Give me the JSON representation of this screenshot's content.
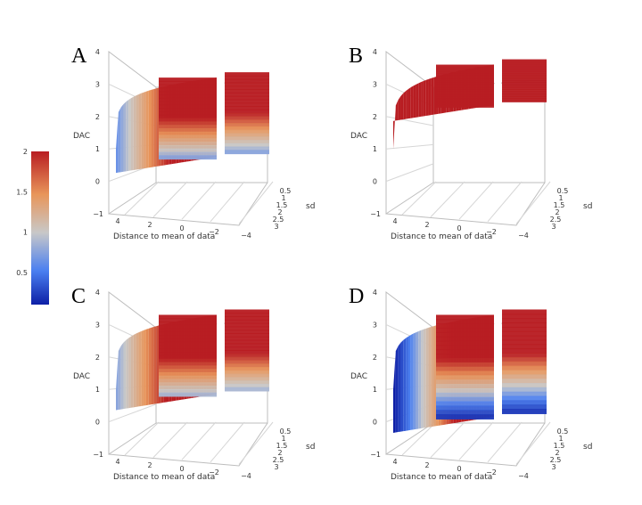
{
  "colorbar": {
    "ticks": [
      "2",
      "1.5",
      "1",
      "0.5"
    ],
    "tick_values": [
      2,
      1.5,
      1,
      0.5
    ],
    "range": [
      0.1,
      2
    ],
    "colors": [
      "#0d1fa6",
      "#4a7ff0",
      "#c8c8c8",
      "#e8955a",
      "#b81d22"
    ]
  },
  "chart_data": [
    {
      "panel": "A",
      "type": "surface",
      "zlabel": "DAC",
      "xlabel": "Distance to mean of data",
      "ylabel": "sd",
      "z_ticks": [
        "4",
        "3",
        "2",
        "1",
        "0",
        "−1"
      ],
      "x_ticks": [
        "4",
        "2",
        "0",
        "−2",
        "−4"
      ],
      "sd_ticks": [
        "0.5",
        "1",
        "1.5",
        "2",
        "2.5",
        "3"
      ],
      "zlim": [
        -1,
        4
      ],
      "surface": {
        "floor": 0.7,
        "cap": 3.2,
        "dip_min": 0.6
      }
    },
    {
      "panel": "B",
      "type": "surface",
      "zlabel": "DAC",
      "xlabel": "Distance to mean of data",
      "ylabel": "sd",
      "z_ticks": [
        "4",
        "3",
        "2",
        "1",
        "0",
        "−1"
      ],
      "x_ticks": [
        "4",
        "2",
        "0",
        "−2",
        "−4"
      ],
      "sd_ticks": [
        "0.5",
        "1",
        "1.5",
        "2",
        "2.5",
        "3"
      ],
      "zlim": [
        -1,
        4
      ],
      "surface": {
        "floor": 2.3,
        "cap": 3.6,
        "dip_min": 0.6
      }
    },
    {
      "panel": "C",
      "type": "surface",
      "zlabel": "DAC",
      "xlabel": "Distance to mean of data",
      "ylabel": "sd",
      "z_ticks": [
        "4",
        "3",
        "2",
        "1",
        "0",
        "−1"
      ],
      "x_ticks": [
        "4",
        "2",
        "0",
        "−2",
        "−4"
      ],
      "sd_ticks": [
        "0.5",
        "1",
        "1.5",
        "2",
        "2.5",
        "3"
      ],
      "zlim": [
        -1,
        4
      ],
      "surface": {
        "floor": 0.8,
        "cap": 3.3,
        "dip_min": 0.7
      }
    },
    {
      "panel": "D",
      "type": "surface",
      "zlabel": "DAC",
      "xlabel": "Distance to mean of data",
      "ylabel": "sd",
      "z_ticks": [
        "4",
        "3",
        "2",
        "1",
        "0",
        "−1"
      ],
      "x_ticks": [
        "4",
        "2",
        "0",
        "−2",
        "−4"
      ],
      "sd_ticks": [
        "0.5",
        "1",
        "1.5",
        "2",
        "2.5",
        "3"
      ],
      "zlim": [
        -1,
        4
      ],
      "surface": {
        "floor": 0.1,
        "cap": 3.3,
        "dip_min": 0.6
      }
    }
  ]
}
